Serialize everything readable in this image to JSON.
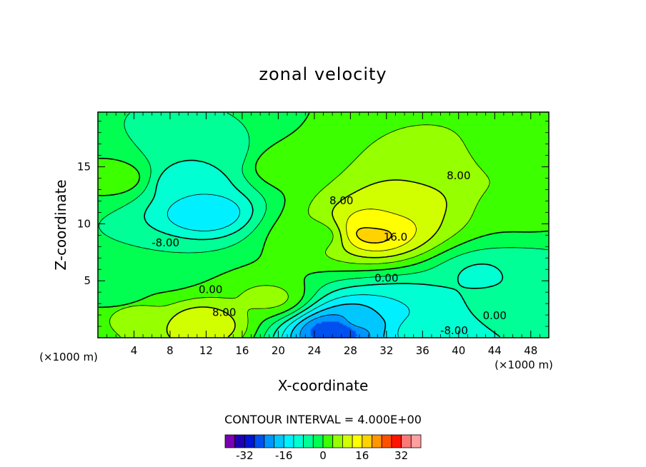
{
  "chart_data": {
    "type": "heatmap",
    "title": "zonal velocity",
    "xlabel": "X-coordinate",
    "ylabel": "Z-coordinate",
    "x_unit_left": "(×1000 m)",
    "x_unit_right": "(×1000 m)",
    "xlim": [
      0,
      50
    ],
    "ylim": [
      0,
      19.8
    ],
    "x_ticks": [
      4,
      8,
      12,
      16,
      20,
      24,
      28,
      32,
      36,
      40,
      44,
      48
    ],
    "x_tick_labels": [
      "4",
      "8",
      "12",
      "16",
      "20",
      "24",
      "28",
      "32",
      "36",
      "40",
      "44",
      "48"
    ],
    "y_ticks": [
      5,
      10,
      15
    ],
    "y_tick_labels": [
      "5",
      "10",
      "15"
    ],
    "contour_interval_label": "CONTOUR INTERVAL = 4.000E+00",
    "contour_interval": 4,
    "contour_labels": [
      {
        "text": "-8.00",
        "x": 7.5,
        "y": 8.3
      },
      {
        "text": "0.00",
        "x": 12.5,
        "y": 4.2
      },
      {
        "text": "8.00",
        "x": 14.0,
        "y": 2.2
      },
      {
        "text": "8.00",
        "x": 27.0,
        "y": 12.0
      },
      {
        "text": "16.0",
        "x": 33.0,
        "y": 8.8
      },
      {
        "text": "8.00",
        "x": 40.0,
        "y": 14.2
      },
      {
        "text": "0.00",
        "x": 32.0,
        "y": 5.2
      },
      {
        "text": "0.00",
        "x": 44.0,
        "y": 1.9
      },
      {
        "text": "-8.00",
        "x": 39.5,
        "y": 0.6
      }
    ],
    "features": [
      {
        "x": 12,
        "y": 11,
        "value": -16
      },
      {
        "x": 10,
        "y": 13.5,
        "value": -12
      },
      {
        "x": 12,
        "y": 16,
        "value": -8
      },
      {
        "x": 30.5,
        "y": 9.2,
        "value": 18
      },
      {
        "x": 31,
        "y": 10,
        "value": 14
      },
      {
        "x": 34,
        "y": 12,
        "value": 10
      },
      {
        "x": 38,
        "y": 15,
        "value": 7
      },
      {
        "x": 11.5,
        "y": 1.2,
        "value": 12
      },
      {
        "x": 4,
        "y": 2.2,
        "value": 6
      },
      {
        "x": 19,
        "y": 3.5,
        "value": 5
      },
      {
        "x": 26.5,
        "y": 0.6,
        "value": -28
      },
      {
        "x": 29,
        "y": 1.5,
        "value": -19
      },
      {
        "x": 34,
        "y": 2.5,
        "value": -12
      },
      {
        "x": 43,
        "y": 5.5,
        "value": -9
      },
      {
        "x": 47.5,
        "y": 6,
        "value": -5
      },
      {
        "x": 46,
        "y": 3,
        "value": -6
      },
      {
        "x": 36,
        "y": 0.6,
        "value": -10
      },
      {
        "x": 24,
        "y": 9,
        "value": 2
      },
      {
        "x": 21,
        "y": 15,
        "value": 3
      },
      {
        "x": 6,
        "y": 6,
        "value": -4
      },
      {
        "x": 2,
        "y": 14,
        "value": 2
      },
      {
        "x": 45,
        "y": 16,
        "value": 2
      },
      {
        "x": 48,
        "y": 11,
        "value": 1
      },
      {
        "x": 2.5,
        "y": 3.5,
        "value": -3
      }
    ],
    "colorbar": {
      "levels": [
        -36,
        -32,
        -28,
        -24,
        -20,
        -16,
        -12,
        -8,
        -4,
        0,
        4,
        8,
        12,
        16,
        20,
        24,
        28,
        32,
        36
      ],
      "colors": [
        "#7a00b4",
        "#1e00b4",
        "#0014d2",
        "#0050f0",
        "#0096ff",
        "#00c8ff",
        "#00f0ff",
        "#00ffd2",
        "#00ff96",
        "#00ff50",
        "#3cff00",
        "#96ff00",
        "#d2ff00",
        "#ffff00",
        "#ffd200",
        "#ff9600",
        "#ff5000",
        "#ff1400",
        "#ff7878",
        "#ffa0a0"
      ],
      "tick_values": [
        -32,
        -16,
        0,
        16,
        32
      ],
      "tick_labels": [
        "-32",
        "-16",
        "0",
        "16",
        "32"
      ]
    }
  }
}
